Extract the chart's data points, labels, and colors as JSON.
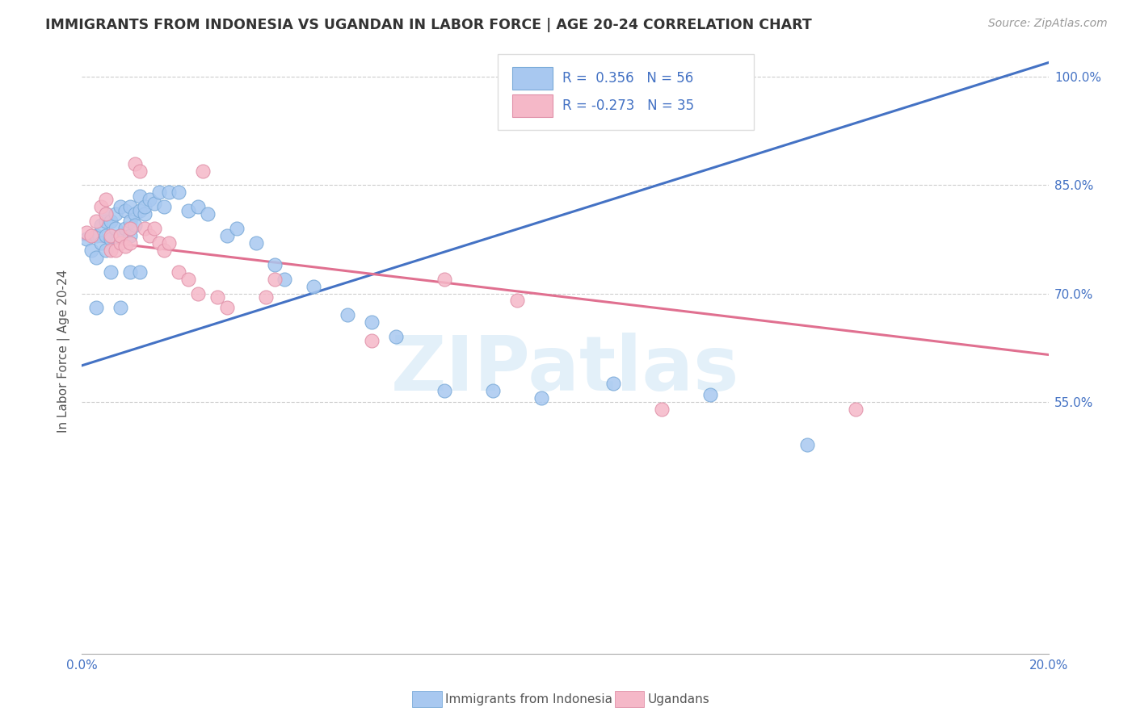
{
  "title": "IMMIGRANTS FROM INDONESIA VS UGANDAN IN LABOR FORCE | AGE 20-24 CORRELATION CHART",
  "source": "Source: ZipAtlas.com",
  "ylabel": "In Labor Force | Age 20-24",
  "xlim": [
    0.0,
    0.2
  ],
  "ylim": [
    0.2,
    1.04
  ],
  "ytick_positions": [
    0.55,
    0.7,
    0.85,
    1.0
  ],
  "ytick_labels": [
    "55.0%",
    "70.0%",
    "85.0%",
    "100.0%"
  ],
  "xtick_positions": [
    0.0,
    0.02,
    0.04,
    0.06,
    0.08,
    0.1,
    0.12,
    0.14,
    0.16,
    0.18,
    0.2
  ],
  "xtick_labels": [
    "0.0%",
    "",
    "",
    "",
    "",
    "",
    "",
    "",
    "",
    "",
    "20.0%"
  ],
  "blue_color": "#a8c8f0",
  "pink_color": "#f5b8c8",
  "line_blue_color": "#4472c4",
  "line_pink_color": "#e07090",
  "blue_line_y0": 0.6,
  "blue_line_y1": 1.02,
  "pink_line_y0": 0.775,
  "pink_line_y1": 0.615,
  "watermark_text": "ZIPatlas",
  "legend_r_blue": "R =  0.356",
  "legend_n_blue": "N = 56",
  "legend_r_pink": "R = -0.273",
  "legend_n_pink": "N = 35",
  "blue_x": [
    0.001,
    0.002,
    0.003,
    0.003,
    0.004,
    0.004,
    0.005,
    0.005,
    0.005,
    0.005,
    0.006,
    0.006,
    0.007,
    0.007,
    0.008,
    0.008,
    0.009,
    0.009,
    0.01,
    0.01,
    0.01,
    0.011,
    0.011,
    0.012,
    0.012,
    0.013,
    0.013,
    0.014,
    0.015,
    0.016,
    0.017,
    0.018,
    0.02,
    0.022,
    0.024,
    0.026,
    0.03,
    0.032,
    0.036,
    0.04,
    0.042,
    0.048,
    0.055,
    0.06,
    0.065,
    0.075,
    0.085,
    0.095,
    0.11,
    0.13,
    0.15,
    0.003,
    0.006,
    0.008,
    0.01,
    0.012
  ],
  "blue_y": [
    0.775,
    0.76,
    0.75,
    0.78,
    0.77,
    0.795,
    0.78,
    0.8,
    0.76,
    0.81,
    0.775,
    0.8,
    0.79,
    0.81,
    0.78,
    0.82,
    0.79,
    0.815,
    0.8,
    0.78,
    0.82,
    0.81,
    0.795,
    0.815,
    0.835,
    0.81,
    0.82,
    0.83,
    0.825,
    0.84,
    0.82,
    0.84,
    0.84,
    0.815,
    0.82,
    0.81,
    0.78,
    0.79,
    0.77,
    0.74,
    0.72,
    0.71,
    0.67,
    0.66,
    0.64,
    0.565,
    0.565,
    0.555,
    0.575,
    0.56,
    0.49,
    0.68,
    0.73,
    0.68,
    0.73,
    0.73
  ],
  "pink_x": [
    0.001,
    0.002,
    0.003,
    0.004,
    0.005,
    0.005,
    0.006,
    0.006,
    0.007,
    0.008,
    0.008,
    0.009,
    0.01,
    0.01,
    0.011,
    0.012,
    0.013,
    0.014,
    0.015,
    0.016,
    0.017,
    0.018,
    0.02,
    0.022,
    0.024,
    0.028,
    0.03,
    0.038,
    0.04,
    0.06,
    0.075,
    0.09,
    0.12,
    0.16,
    0.025
  ],
  "pink_y": [
    0.785,
    0.78,
    0.8,
    0.82,
    0.81,
    0.83,
    0.78,
    0.76,
    0.76,
    0.77,
    0.78,
    0.765,
    0.77,
    0.79,
    0.88,
    0.87,
    0.79,
    0.78,
    0.79,
    0.77,
    0.76,
    0.77,
    0.73,
    0.72,
    0.7,
    0.695,
    0.68,
    0.695,
    0.72,
    0.635,
    0.72,
    0.69,
    0.54,
    0.54,
    0.87
  ]
}
